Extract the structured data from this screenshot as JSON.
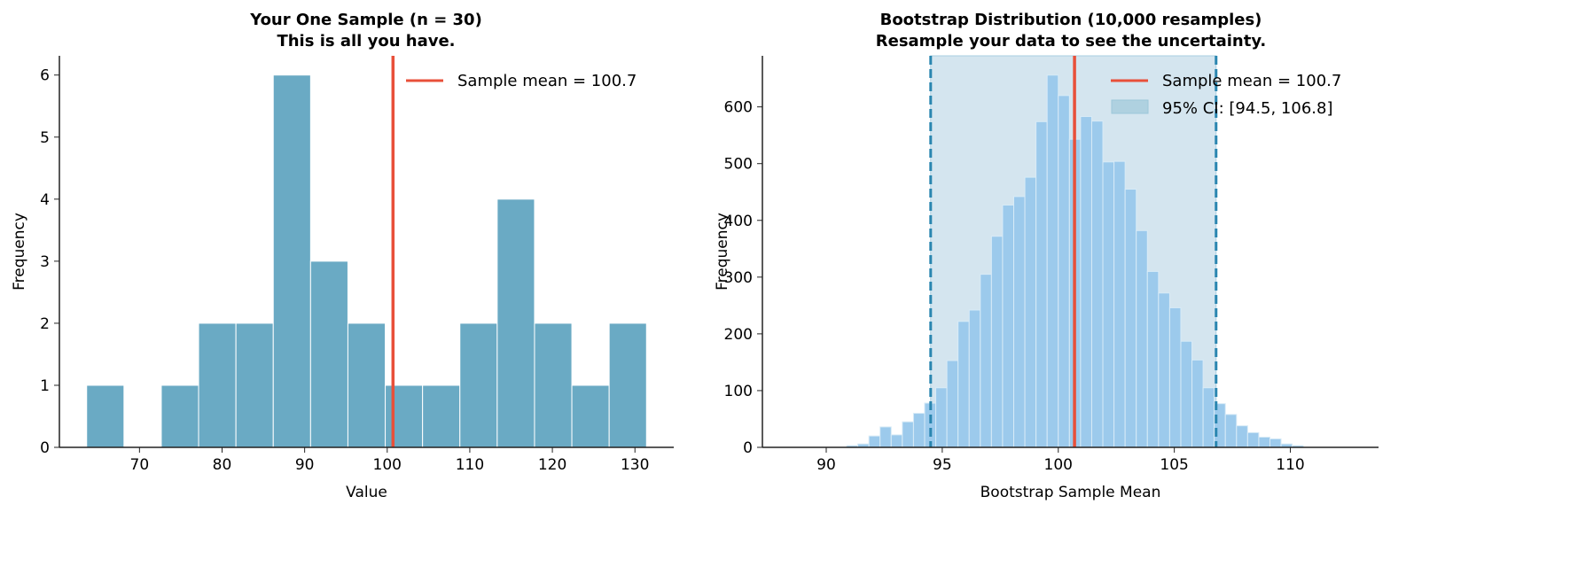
{
  "chart_data": [
    {
      "type": "bar",
      "title": [
        "Your One Sample (n = 30)",
        "This is all you have."
      ],
      "xlabel": "Value",
      "ylabel": "Frequency",
      "bin_start": 63.6,
      "bin_width": 4.52,
      "values": [
        1,
        0,
        1,
        2,
        2,
        6,
        3,
        2,
        1,
        1,
        2,
        4,
        2,
        1,
        2
      ],
      "xlim": [
        60.3,
        134.7
      ],
      "ylim": [
        0,
        6.31
      ],
      "xticks": [
        70,
        80,
        90,
        100,
        110,
        120,
        130
      ],
      "yticks": [
        0,
        1,
        2,
        3,
        4,
        5,
        6
      ],
      "mean": 100.7,
      "legend": [
        "Sample mean = 100.7"
      ],
      "legend_position": "top-right",
      "bar_color": "#6aaac4",
      "mean_color": "#e8503a"
    },
    {
      "type": "bar",
      "title": [
        "Bootstrap Distribution (10,000 resamples)",
        "Resample your data to see the uncertainty."
      ],
      "xlabel": "Bootstrap Sample Mean",
      "ylabel": "Frequency",
      "bin_start": 90.88,
      "bin_width": 0.48,
      "values": [
        3,
        6,
        20,
        36,
        22,
        45,
        60,
        78,
        105,
        153,
        222,
        242,
        305,
        372,
        427,
        442,
        476,
        574,
        656,
        620,
        543,
        583,
        575,
        503,
        504,
        455,
        382,
        310,
        272,
        246,
        187,
        154,
        105,
        77,
        58,
        38,
        26,
        18,
        15,
        6,
        3
      ],
      "xlim": [
        87.25,
        113.8
      ],
      "ylim": [
        0,
        690
      ],
      "xticks": [
        90,
        95,
        100,
        105,
        110
      ],
      "yticks": [
        0,
        100,
        200,
        300,
        400,
        500,
        600
      ],
      "mean": 100.7,
      "ci": [
        94.5,
        106.8
      ],
      "legend": [
        "Sample mean = 100.7",
        "95% CI: [94.5, 106.8]"
      ],
      "legend_position": "top-right",
      "bar_color": "#9ccaec",
      "ci_fill": "#d4e5ef",
      "ci_line": "#2a86b0",
      "mean_color": "#e8503a"
    }
  ]
}
